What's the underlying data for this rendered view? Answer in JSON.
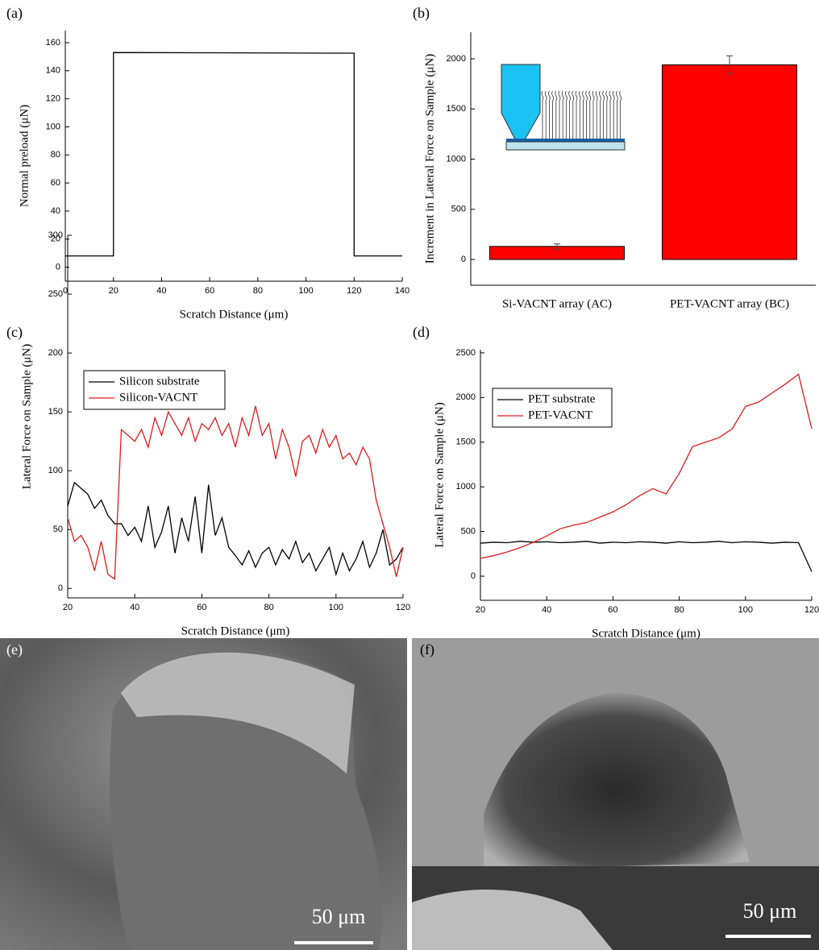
{
  "chart_data": [
    {
      "type": "line",
      "panel_label": "(a)",
      "xlabel": "Scratch Distance (μm)",
      "ylabel": "Normal preload (μN)",
      "x": [
        0,
        20,
        20,
        120,
        120,
        140
      ],
      "series": [
        {
          "color": "#000000",
          "values": [
            8,
            8,
            153,
            152.5,
            8,
            8
          ]
        }
      ],
      "xlim": [
        0,
        140
      ],
      "xticks": [
        0,
        20,
        40,
        60,
        80,
        100,
        120,
        140
      ],
      "ylim": [
        -10,
        168.6
      ],
      "yticks": [
        0,
        20,
        40,
        60,
        80,
        100,
        120,
        140,
        160
      ]
    },
    {
      "type": "bar",
      "panel_label": "(b)",
      "ylabel": "Increment in Lateral Force on Sample (μN)",
      "categories": [
        "Si-VACNT array (AC)",
        "PET-VACNT array (BC)"
      ],
      "values": [
        130,
        1940
      ],
      "errors": [
        25,
        90
      ],
      "color": "#ff0000",
      "ylim": [
        -257,
        2265
      ],
      "yticks": [
        0,
        500,
        1000,
        1500,
        2000
      ]
    },
    {
      "type": "line",
      "panel_label": "(c)",
      "xlabel": "Scratch Distance (μm)",
      "ylabel": "Lateral Force on Sample (μN)",
      "x": [
        20,
        22,
        24,
        26,
        28,
        30,
        32,
        34,
        36,
        38,
        40,
        42,
        44,
        46,
        48,
        50,
        52,
        54,
        56,
        58,
        60,
        62,
        64,
        66,
        68,
        70,
        72,
        74,
        76,
        78,
        80,
        82,
        84,
        86,
        88,
        90,
        92,
        94,
        96,
        98,
        100,
        102,
        104,
        106,
        108,
        110,
        112,
        114,
        116,
        118,
        120
      ],
      "series": [
        {
          "name": "Silicon substrate",
          "color": "#000000",
          "values": [
            70,
            90,
            85,
            80,
            68,
            75,
            62,
            55,
            55,
            45,
            52,
            40,
            70,
            35,
            48,
            70,
            30,
            60,
            40,
            78,
            30,
            88,
            45,
            60,
            35,
            28,
            20,
            32,
            18,
            30,
            35,
            20,
            33,
            25,
            40,
            22,
            30,
            15,
            25,
            35,
            12,
            30,
            15,
            25,
            40,
            18,
            30,
            50,
            20,
            25,
            35
          ]
        },
        {
          "name": "Silicon-VACNT",
          "color": "#e41a1c",
          "values": [
            60,
            40,
            45,
            35,
            15,
            40,
            12,
            8,
            135,
            130,
            125,
            135,
            120,
            145,
            130,
            150,
            140,
            130,
            145,
            125,
            140,
            135,
            145,
            130,
            140,
            120,
            145,
            130,
            155,
            130,
            140,
            110,
            135,
            120,
            95,
            125,
            130,
            115,
            135,
            120,
            130,
            110,
            115,
            105,
            120,
            110,
            75,
            55,
            35,
            10,
            35
          ]
        }
      ],
      "legend": "upper left",
      "xlim": [
        20,
        120
      ],
      "xticks": [
        20,
        40,
        60,
        80,
        100,
        120
      ],
      "ylim": [
        -8,
        300
      ],
      "yticks": [
        0,
        50,
        100,
        150,
        200,
        250,
        300
      ]
    },
    {
      "type": "line",
      "panel_label": "(d)",
      "xlabel": "Scratch Distance (μm)",
      "ylabel": "Lateral Force on Sample (μN)",
      "x": [
        20,
        24,
        28,
        32,
        36,
        40,
        44,
        48,
        52,
        56,
        60,
        64,
        68,
        72,
        76,
        80,
        84,
        88,
        92,
        96,
        100,
        104,
        108,
        112,
        116,
        120
      ],
      "series": [
        {
          "name": "PET substrate",
          "color": "#000000",
          "values": [
            370,
            380,
            375,
            390,
            380,
            385,
            375,
            380,
            390,
            370,
            380,
            375,
            385,
            380,
            370,
            385,
            375,
            380,
            390,
            375,
            385,
            380,
            370,
            380,
            375,
            50
          ]
        },
        {
          "name": "PET-VACNT",
          "color": "#e41a1c",
          "values": [
            200,
            230,
            270,
            320,
            380,
            450,
            530,
            570,
            600,
            660,
            720,
            800,
            900,
            980,
            920,
            1150,
            1450,
            1500,
            1550,
            1650,
            1900,
            1950,
            2050,
            2150,
            2260,
            1650
          ]
        }
      ],
      "legend": "upper left",
      "xlim": [
        20,
        120
      ],
      "xticks": [
        20,
        40,
        60,
        80,
        100,
        120
      ],
      "ylim": [
        -270,
        2535
      ],
      "yticks": [
        0,
        500,
        1000,
        1500,
        2000,
        2500
      ]
    }
  ],
  "images": [
    {
      "panel_label": "(e)",
      "scale_label": "50 μm"
    },
    {
      "panel_label": "(f)",
      "scale_label": "50 μm"
    }
  ]
}
